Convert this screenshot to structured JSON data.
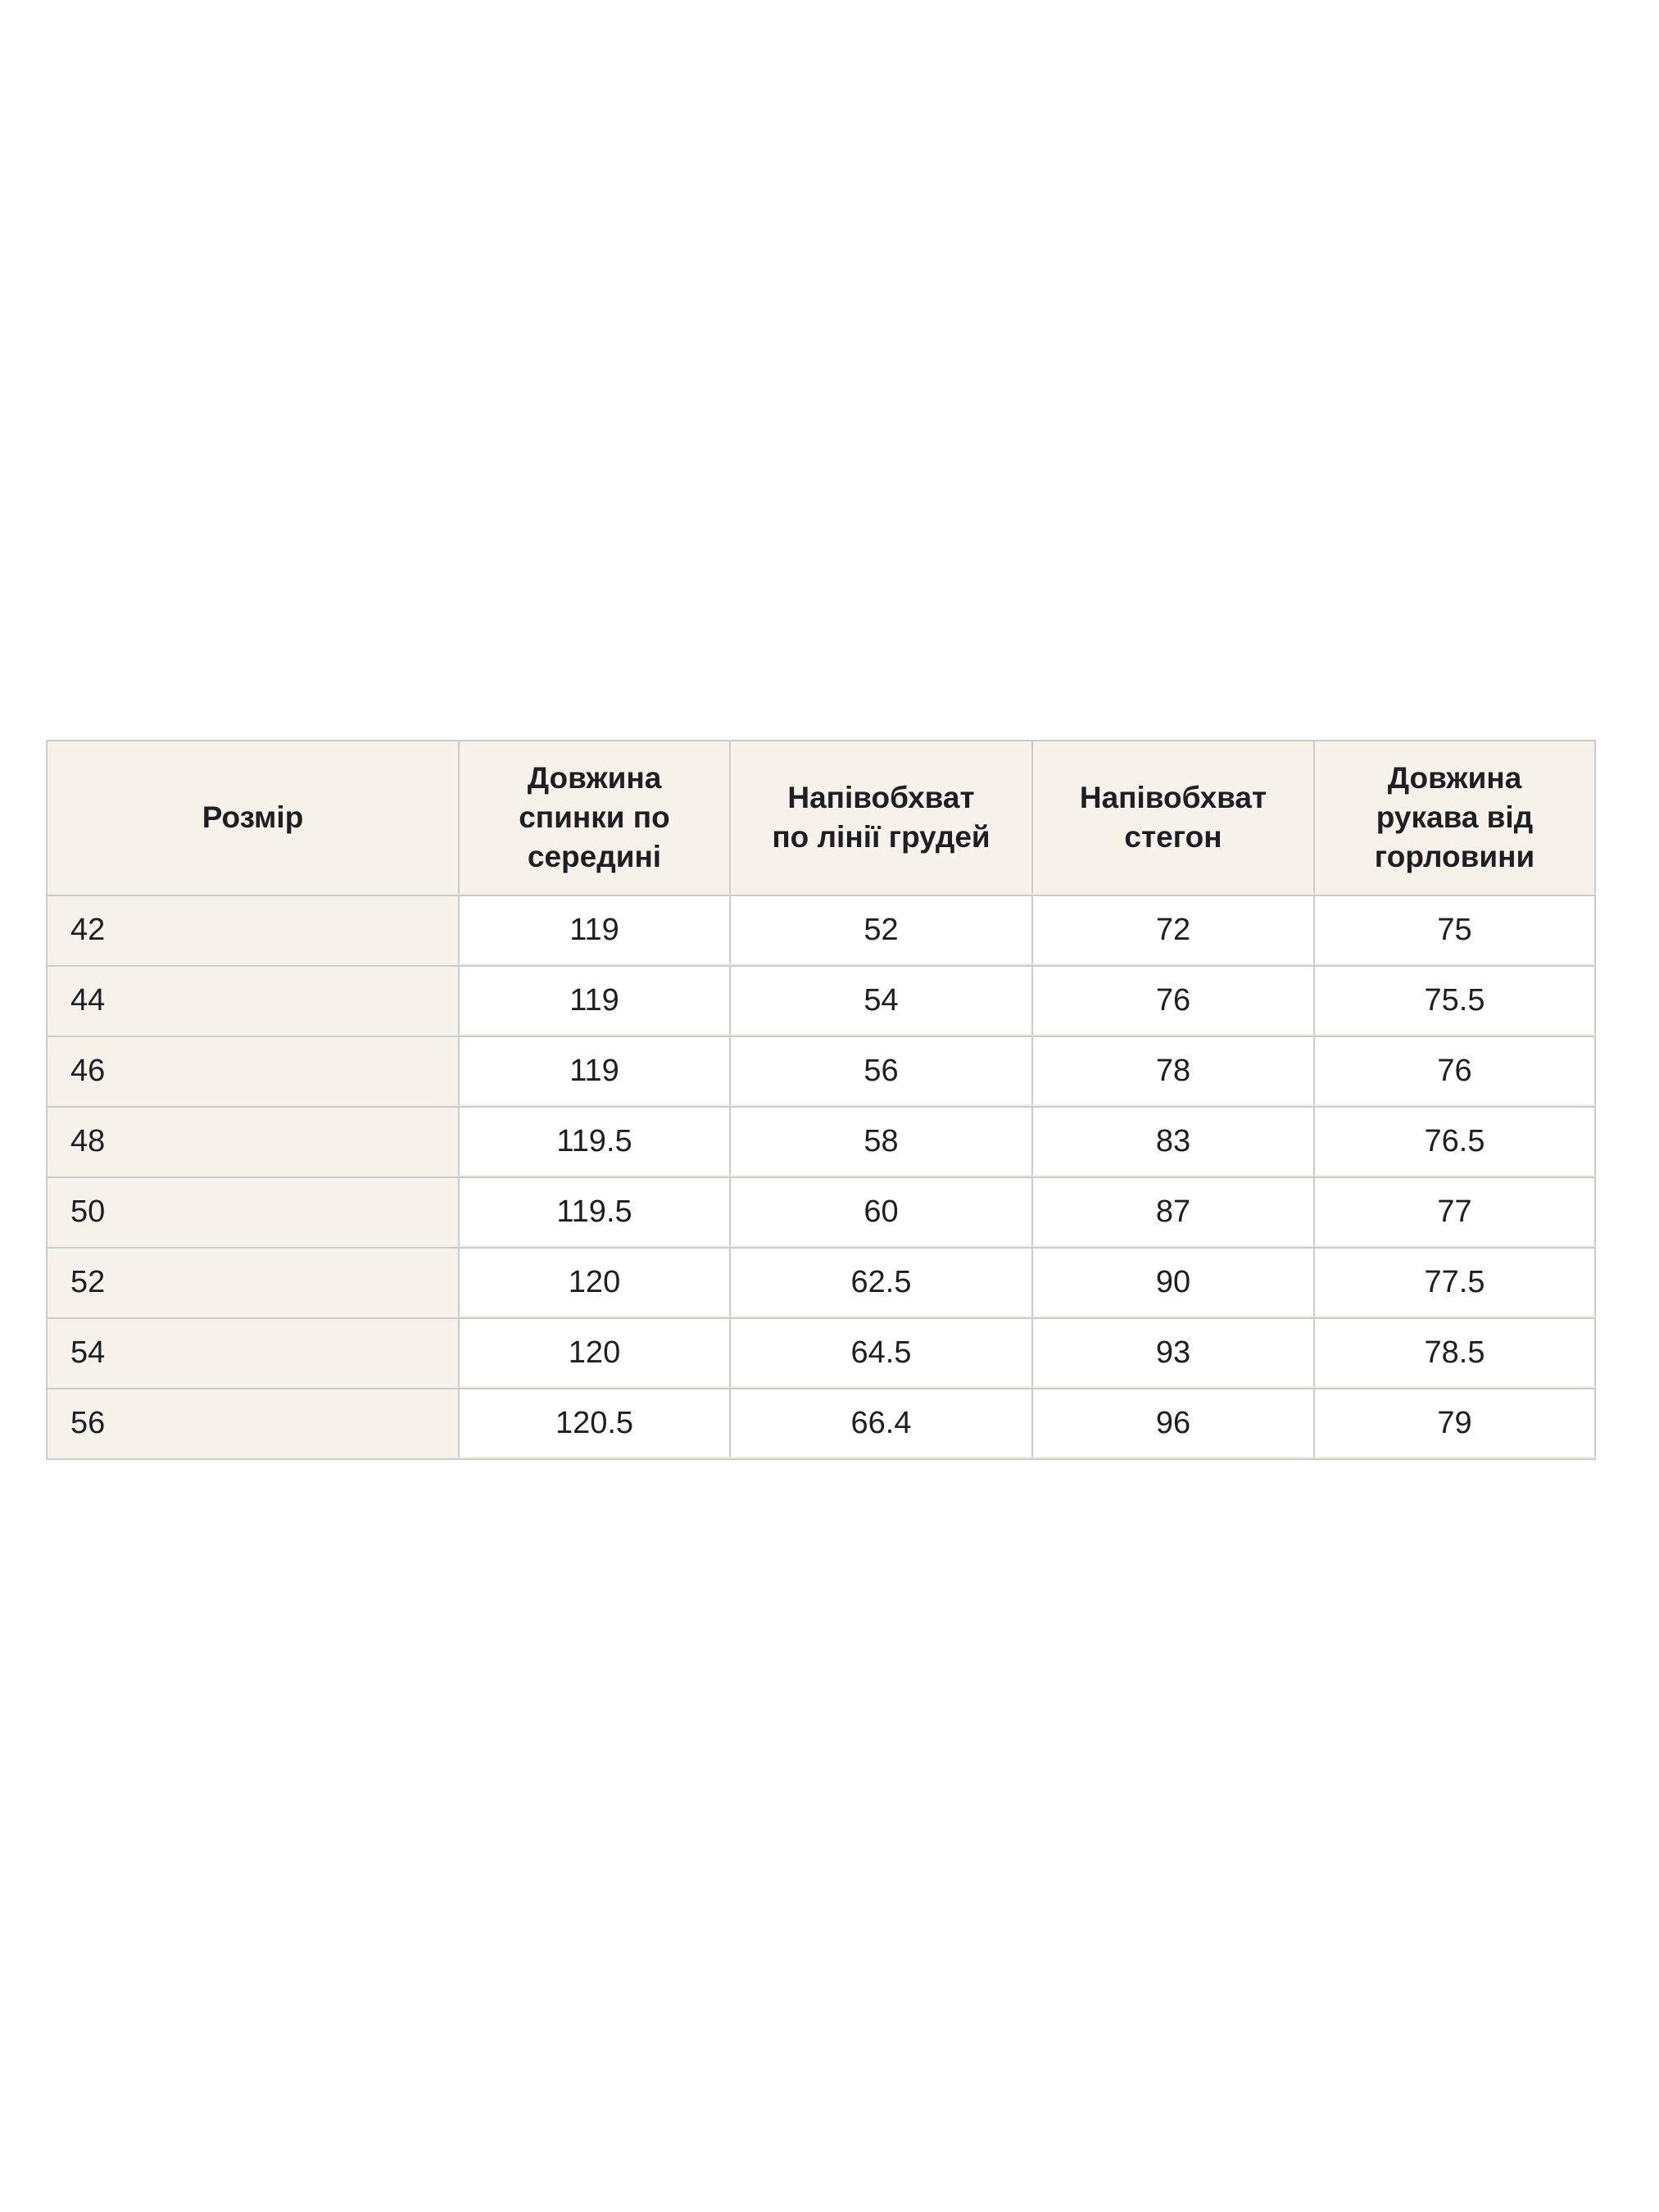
{
  "size_table": {
    "columns": [
      "Розмір",
      "Довжина\nспинки по\nсередині",
      "Напівобхват\nпо лінії грудей",
      "Напівобхват\nстегон",
      "Довжина\nрукава від\nгорловини"
    ],
    "rows": [
      {
        "size": "42",
        "values": [
          "119",
          "52",
          "72",
          "75"
        ]
      },
      {
        "size": "44",
        "values": [
          "119",
          "54",
          "76",
          "75.5"
        ]
      },
      {
        "size": "46",
        "values": [
          "119",
          "56",
          "78",
          "76"
        ]
      },
      {
        "size": "48",
        "values": [
          "119.5",
          "58",
          "83",
          "76.5"
        ]
      },
      {
        "size": "50",
        "values": [
          "119.5",
          "60",
          "87",
          "77"
        ]
      },
      {
        "size": "52",
        "values": [
          "120",
          "62.5",
          "90",
          "77.5"
        ]
      },
      {
        "size": "54",
        "values": [
          "120",
          "64.5",
          "93",
          "78.5"
        ]
      },
      {
        "size": "56",
        "values": [
          "120.5",
          "66.4",
          "96",
          "79"
        ]
      }
    ],
    "colors": {
      "header_bg": "#f6f2eb",
      "cell_bg": "#ffffff",
      "border": "#cbcbcb",
      "row_gap": "#f1efe9",
      "text": "#1f1f23"
    }
  }
}
